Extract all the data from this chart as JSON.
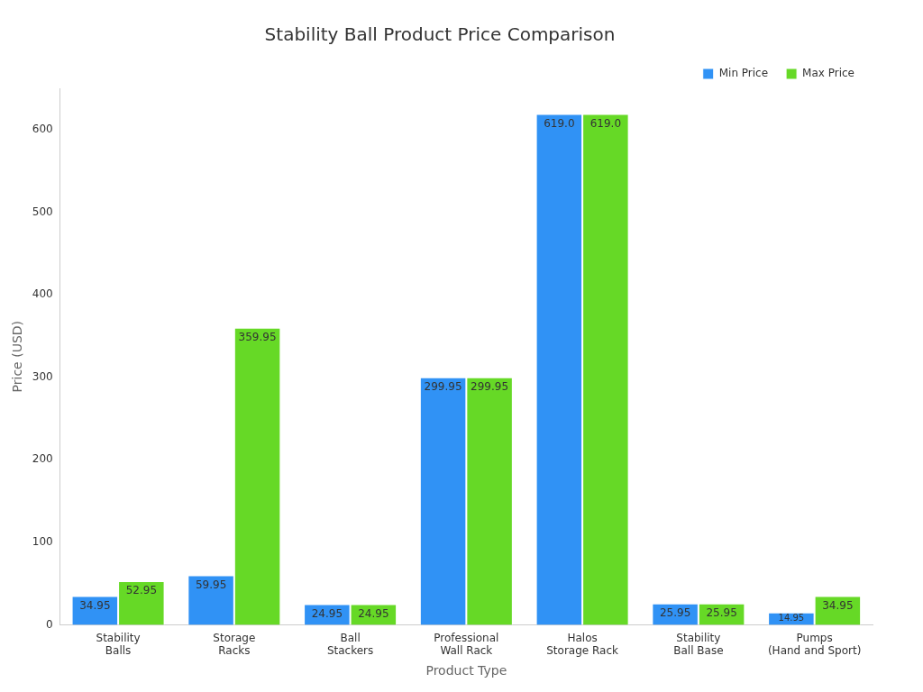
{
  "chart_data": {
    "type": "bar",
    "title": "Stability Ball Product Price Comparison",
    "xlabel": "Product Type",
    "ylabel": "Price (USD)",
    "categories": [
      "Stability Balls",
      "Storage Racks",
      "Ball Stackers",
      "Professional Wall Rack",
      "Halos Storage Rack",
      "Stability Ball Base",
      "Pumps (Hand and Sport)"
    ],
    "series": [
      {
        "name": "Min Price",
        "color": "#3092f5",
        "values": [
          34.95,
          59.95,
          24.95,
          299.95,
          619.0,
          25.95,
          14.95
        ],
        "value_labels": [
          "34.95",
          "59.95",
          "24.95",
          "299.95",
          "619.0",
          "25.95",
          "14.95"
        ]
      },
      {
        "name": "Max Price",
        "color": "#66d926",
        "values": [
          52.95,
          359.95,
          24.95,
          299.95,
          619.0,
          25.95,
          34.95
        ],
        "value_labels": [
          "52.95",
          "359.95",
          "24.95",
          "299.95",
          "619.0",
          "25.95",
          "34.95"
        ]
      }
    ],
    "ylim": [
      0,
      650
    ],
    "yticks": [
      0,
      100,
      200,
      300,
      400,
      500,
      600
    ],
    "grid": false,
    "legend": "top right"
  }
}
